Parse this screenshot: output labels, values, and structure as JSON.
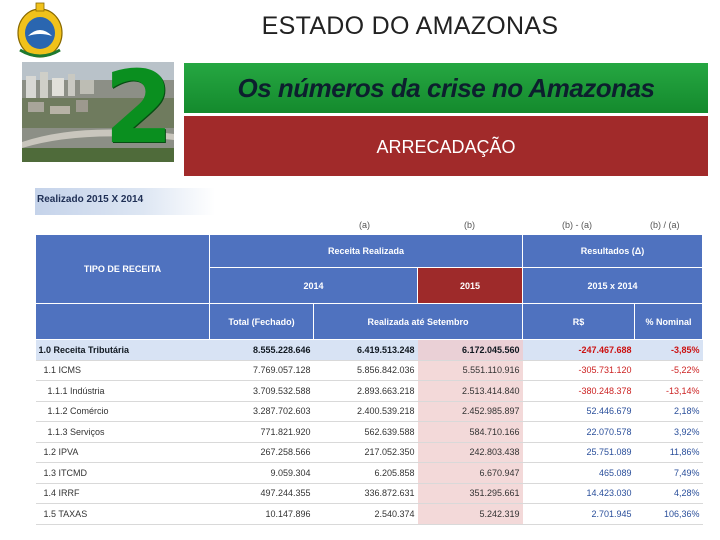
{
  "header": {
    "title": "ESTADO DO AMAZONAS",
    "slide_number": "2",
    "banner": "Os números da crise no Amazonas",
    "section": "ARRECADAÇÃO"
  },
  "table": {
    "subtitle": "Realizado 2015 X 2014",
    "col_refs": [
      "(a)",
      "(b)",
      "(b) - (a)",
      "(b) / (a)"
    ],
    "group_receita": "Receita Realizada",
    "group_resultados": "Resultados (Δ)",
    "tipo_label": "TIPO DE RECEITA",
    "year_2014": "2014",
    "year_2015": "2015",
    "compare": "2015 x 2014",
    "sub_total": "Total (Fechado)",
    "sub_realizada": "Realizada até Setembro",
    "sub_rs": "R$",
    "sub_nominal": "% Nominal",
    "rows": [
      {
        "label": "1.0 Receita Tributária",
        "total": "8.555.228.646",
        "r2014": "6.419.513.248",
        "r2015": "6.172.045.560",
        "rs": "-247.467.688",
        "pct": "-3,85%"
      },
      {
        "label": "1.1 ICMS",
        "total": "7.769.057.128",
        "r2014": "5.856.842.036",
        "r2015": "5.551.110.916",
        "rs": "-305.731.120",
        "pct": "-5,22%"
      },
      {
        "label": "1.1.1 Indústria",
        "total": "3.709.532.588",
        "r2014": "2.893.663.218",
        "r2015": "2.513.414.840",
        "rs": "-380.248.378",
        "pct": "-13,14%"
      },
      {
        "label": "1.1.2 Comércio",
        "total": "3.287.702.603",
        "r2014": "2.400.539.218",
        "r2015": "2.452.985.897",
        "rs": "52.446.679",
        "pct": "2,18%"
      },
      {
        "label": "1.1.3 Serviços",
        "total": "771.821.920",
        "r2014": "562.639.588",
        "r2015": "584.710.166",
        "rs": "22.070.578",
        "pct": "3,92%"
      },
      {
        "label": "1.2 IPVA",
        "total": "267.258.566",
        "r2014": "217.052.350",
        "r2015": "242.803.438",
        "rs": "25.751.089",
        "pct": "11,86%"
      },
      {
        "label": "1.3 ITCMD",
        "total": "9.059.304",
        "r2014": "6.205.858",
        "r2015": "6.670.947",
        "rs": "465.089",
        "pct": "7,49%"
      },
      {
        "label": "1.4 IRRF",
        "total": "497.244.355",
        "r2014": "336.872.631",
        "r2015": "351.295.661",
        "rs": "14.423.030",
        "pct": "4,28%"
      },
      {
        "label": "1.5 TAXAS",
        "total": "10.147.896",
        "r2014": "2.540.374",
        "r2015": "5.242.319",
        "rs": "2.701.945",
        "pct": "106,36%"
      }
    ]
  }
}
